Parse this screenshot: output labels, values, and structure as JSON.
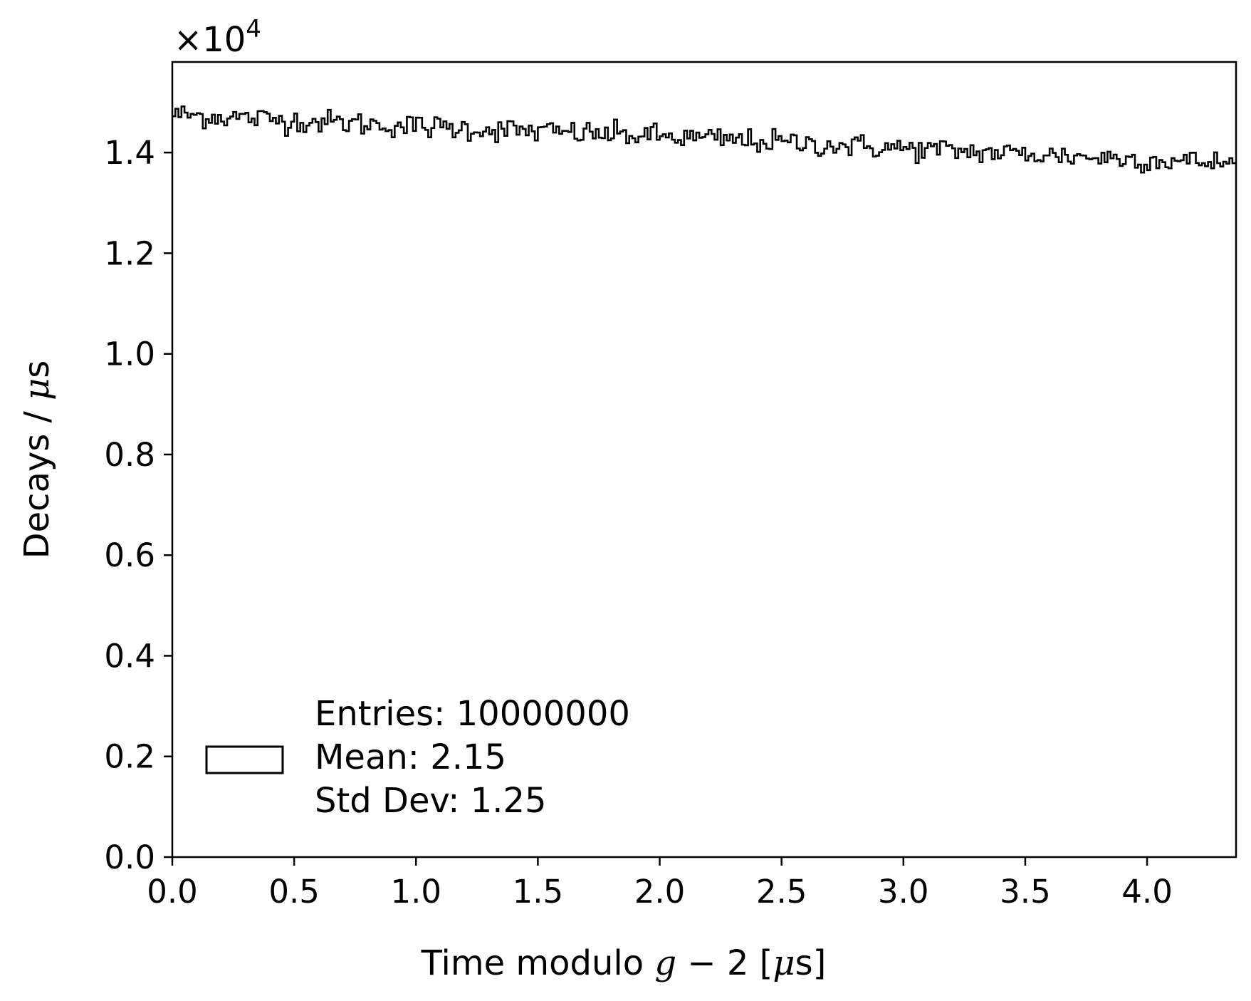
{
  "chart_data": {
    "type": "histogram",
    "title": "",
    "xlabel": "Time modulo g − 2 [μs]",
    "xlabel_parts": {
      "prefix": "Time modulo ",
      "var": "g",
      "op": " − 2 [",
      "mu": "μ",
      "unit": "s]"
    },
    "ylabel": "Decays / μs",
    "ylabel_parts": {
      "prefix": "Decays / ",
      "mu": "μ",
      "unit": "s"
    },
    "y_multiplier": {
      "base": "×10",
      "exponent": "4"
    },
    "xlim": [
      0.0,
      4.365
    ],
    "ylim": [
      0.0,
      1.58
    ],
    "x_ticks": [
      0.0,
      0.5,
      1.0,
      1.5,
      2.0,
      2.5,
      3.0,
      3.5,
      4.0
    ],
    "x_tick_labels": [
      "0.0",
      "0.5",
      "1.0",
      "1.5",
      "2.0",
      "2.5",
      "3.0",
      "3.5",
      "4.0"
    ],
    "y_ticks": [
      0.0,
      0.2,
      0.4,
      0.6,
      0.8,
      1.0,
      1.2,
      1.4
    ],
    "y_tick_labels": [
      "0.0",
      "0.2",
      "0.4",
      "0.6",
      "0.8",
      "1.0",
      "1.2",
      "1.4"
    ],
    "grid": false,
    "legend_position": "lower-left",
    "legend": {
      "entries": "Entries: 10000000",
      "mean": "Mean: 2.15",
      "std": "Std Dev: 1.25"
    },
    "series": [
      {
        "bin_width": 0.0125,
        "x_start": 0.0,
        "x_end": 4.365,
        "trend": [
          [
            0.0,
            1.476
          ],
          [
            1.0,
            1.452
          ],
          [
            2.0,
            1.432
          ],
          [
            3.0,
            1.408
          ],
          [
            4.0,
            1.386
          ],
          [
            4.365,
            1.378
          ]
        ],
        "fluctuation": 0.012,
        "color": "#000000"
      }
    ]
  }
}
